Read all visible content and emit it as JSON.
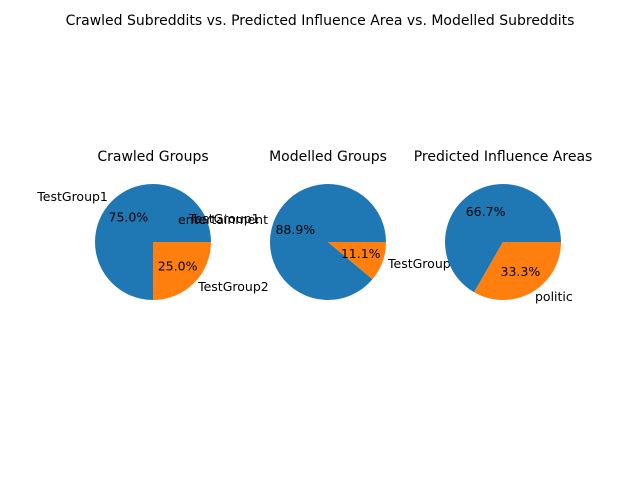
{
  "figure_title": "Crawled Subreddits vs. Predicted Influence Area vs. Modelled Subreddits",
  "colors": {
    "series1": "#1f77b4",
    "series2": "#ff7f0e"
  },
  "chart_data": [
    {
      "type": "pie",
      "title": "Crawled Groups",
      "labels": [
        "TestGroup1",
        "TestGroup2"
      ],
      "values": [
        75.0,
        25.0
      ],
      "percent_labels": [
        "75.0%",
        "25.0%"
      ],
      "annotation": "TestGroup1"
    },
    {
      "type": "pie",
      "title": "Modelled Groups",
      "labels": [
        "entertainment",
        "TestGroup"
      ],
      "values": [
        88.9,
        11.1
      ],
      "percent_labels": [
        "88.9%",
        "11.1%"
      ]
    },
    {
      "type": "pie",
      "title": "Predicted Influence Areas",
      "labels": [
        "",
        "politic"
      ],
      "values": [
        66.7,
        33.3
      ],
      "percent_labels": [
        "66.7%",
        "33.3%"
      ]
    }
  ]
}
